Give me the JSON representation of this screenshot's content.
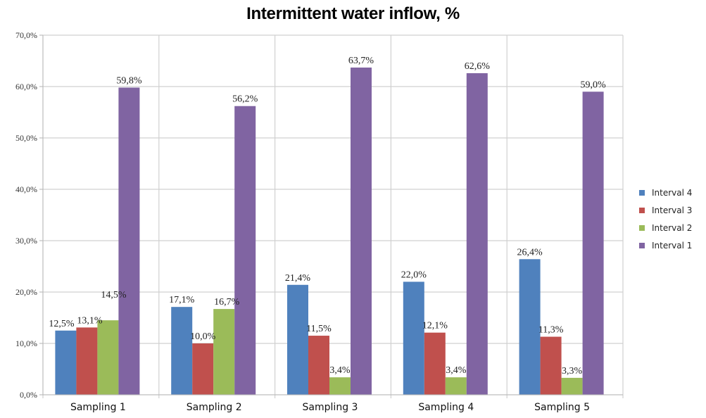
{
  "chart_data": {
    "type": "bar",
    "title": "Intermittent water inflow, %",
    "xlabel": "",
    "ylabel": "",
    "categories": [
      "Sampling 1",
      "Sampling 2",
      "Sampling 3",
      "Sampling 4",
      "Sampling 5"
    ],
    "ylim": [
      0,
      70
    ],
    "yticks": [
      0,
      10,
      20,
      30,
      40,
      50,
      60,
      70
    ],
    "ytick_labels": [
      "0,0%",
      "10,0%",
      "20,0%",
      "30,0%",
      "40,0%",
      "50,0%",
      "60,0%",
      "70,0%"
    ],
    "grid": true,
    "legend_position": "right",
    "series": [
      {
        "name": "Interval 4",
        "color": "#4f81bd",
        "values": [
          12.5,
          17.1,
          21.4,
          22.0,
          26.4
        ],
        "labels": [
          "12,5%",
          "17,1%",
          "21,4%",
          "22,0%",
          "26,4%"
        ]
      },
      {
        "name": "Interval 3",
        "color": "#c0504d",
        "values": [
          13.1,
          10.0,
          11.5,
          12.1,
          11.3
        ],
        "labels": [
          "13,1%",
          "10,0%",
          "11,5%",
          "12,1%",
          "11,3%"
        ]
      },
      {
        "name": "Interval 2",
        "color": "#9bbb59",
        "values": [
          14.5,
          16.7,
          3.4,
          3.4,
          3.3
        ],
        "labels": [
          "14,5%",
          "16,7%",
          "3,4%",
          "3,4%",
          "3,3%"
        ]
      },
      {
        "name": "Interval 1",
        "color": "#8064a2",
        "values": [
          59.8,
          56.2,
          63.7,
          62.6,
          59.0
        ],
        "labels": [
          "59,8%",
          "56,2%",
          "63,7%",
          "62,6%",
          "59,0%"
        ]
      }
    ]
  }
}
